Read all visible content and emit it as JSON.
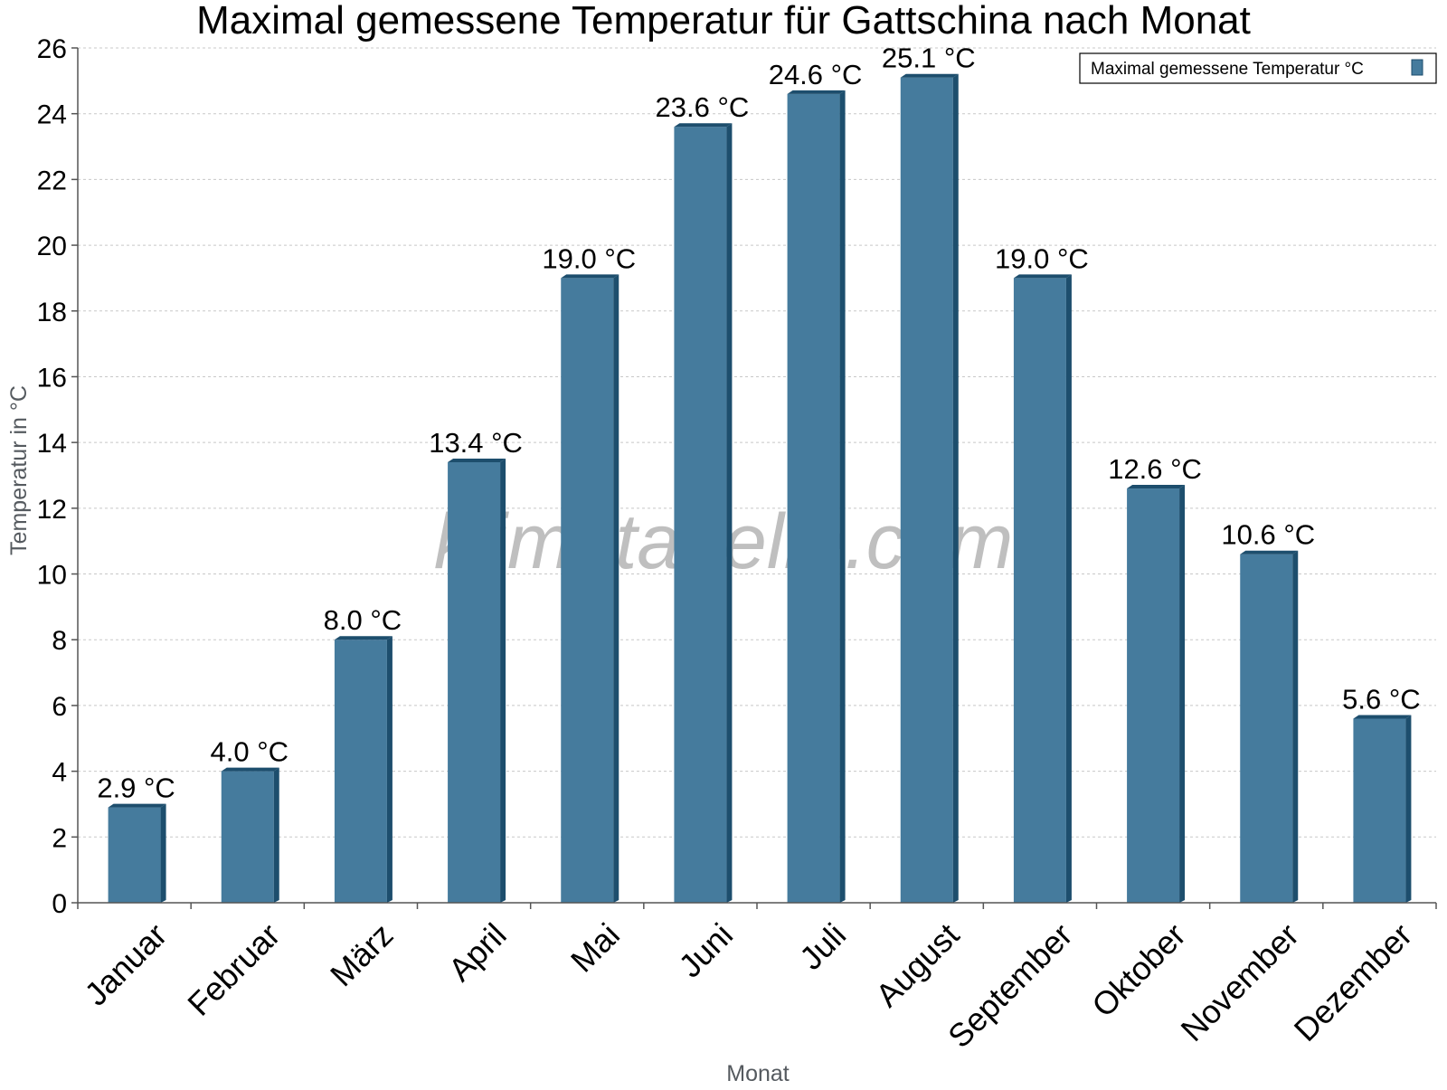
{
  "chart_data": {
    "type": "bar",
    "title": "Maximal gemessene Temperatur für Gattschina nach Monat",
    "xlabel": "Monat",
    "ylabel": "Temperatur in °C",
    "categories": [
      "Januar",
      "Februar",
      "März",
      "April",
      "Mai",
      "Juni",
      "Juli",
      "August",
      "September",
      "Oktober",
      "November",
      "Dezember"
    ],
    "series": [
      {
        "name": "Maximal gemessene Temperatur °C",
        "values": [
          2.9,
          4.0,
          8.0,
          13.4,
          19.0,
          23.6,
          24.6,
          25.1,
          19.0,
          12.6,
          10.6,
          5.6
        ],
        "value_labels": [
          "2.9 °C",
          "4.0 °C",
          "8.0 °C",
          "13.4 °C",
          "19.0 °C",
          "23.6 °C",
          "24.6 °C",
          "25.1 °C",
          "19.0 °C",
          "12.6 °C",
          "10.6 °C",
          "5.6 °C"
        ],
        "color": "#457b9d",
        "side_color": "#1d4e6d"
      }
    ],
    "ylim": [
      0,
      26
    ],
    "yticks": [
      0,
      2,
      4,
      6,
      8,
      10,
      12,
      14,
      16,
      18,
      20,
      22,
      24,
      26
    ],
    "grid": true,
    "legend_position": "top-right"
  },
  "watermark": "klimatabelle.com"
}
